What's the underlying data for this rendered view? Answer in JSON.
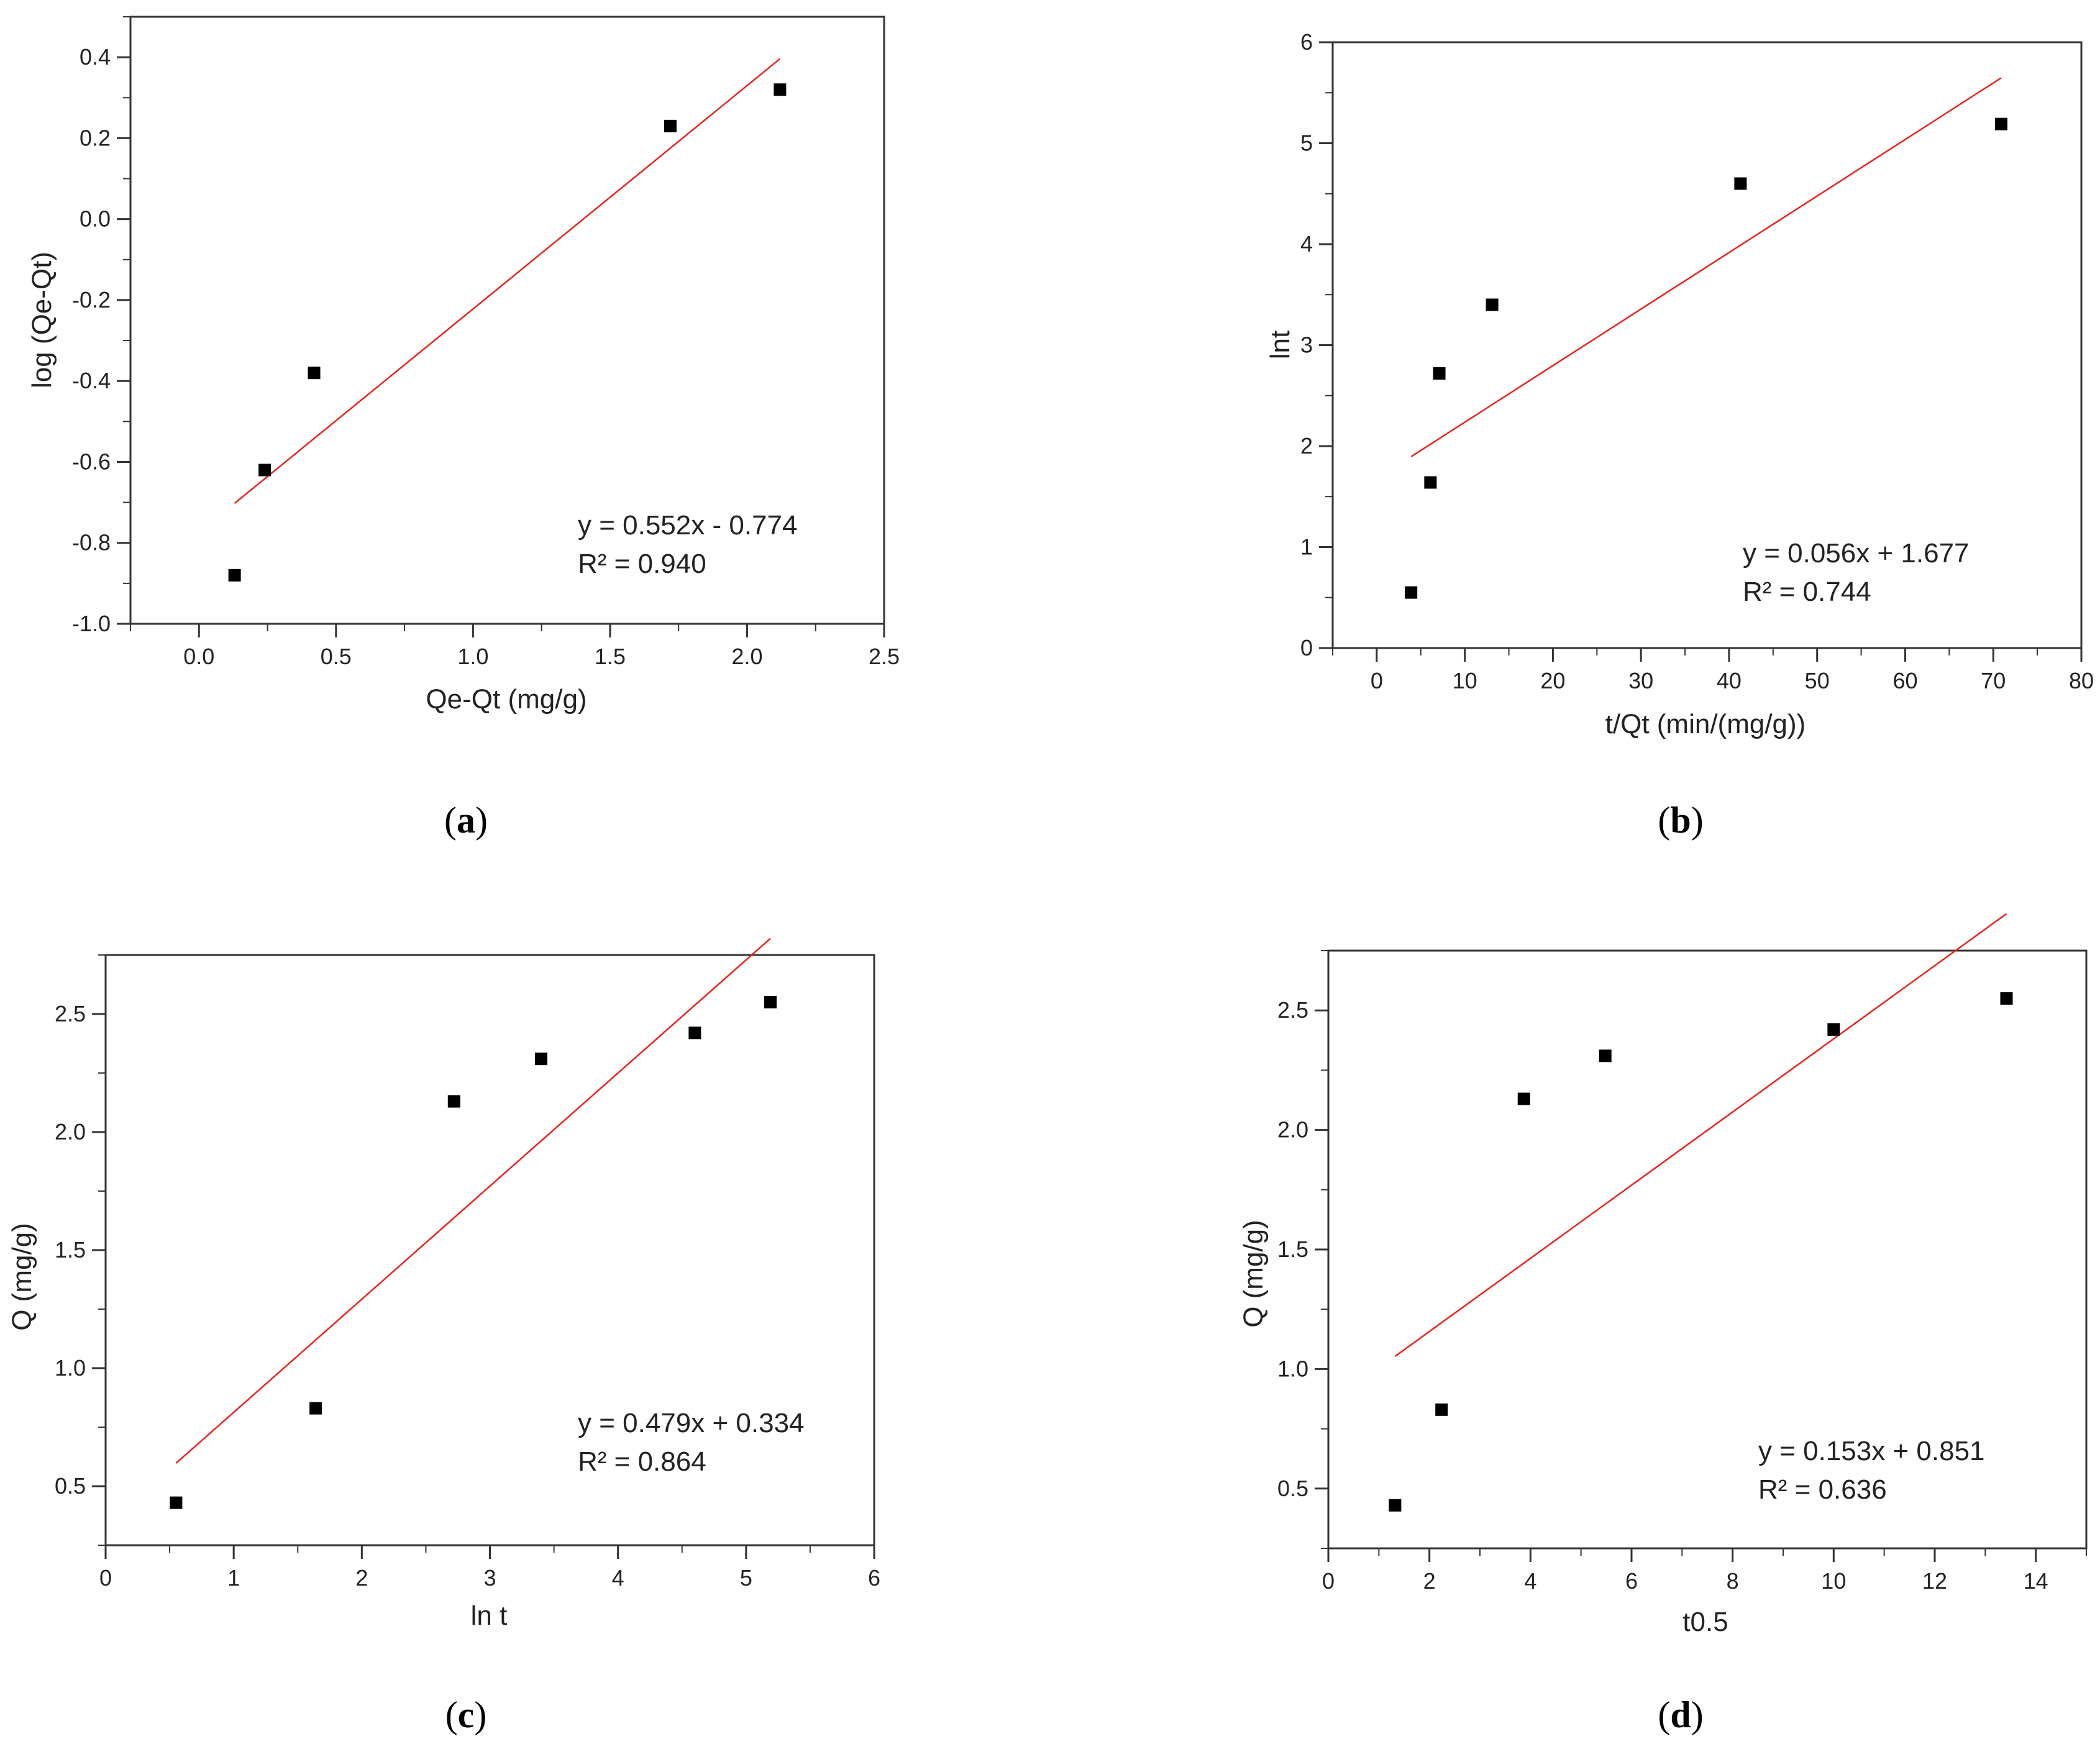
{
  "figure": {
    "line_color": "#e8231d",
    "marker_color": "#000000",
    "frame_color": "#333333"
  },
  "chart_data": [
    {
      "id": "a",
      "type": "scatter",
      "caption_letter": "a",
      "xlabel": "Qe-Qt (mg/g)",
      "ylabel": "log (Qe-Qt)",
      "xlim": [
        -0.25,
        2.5
      ],
      "ylim": [
        -1.0,
        0.5
      ],
      "xticks": [
        0.0,
        0.5,
        1.0,
        1.5,
        2.0,
        2.5
      ],
      "xtick_labels": [
        "0.0",
        "0.5",
        "1.0",
        "1.5",
        "2.0",
        "2.5"
      ],
      "yticks": [
        -1.0,
        -0.8,
        -0.6,
        -0.4,
        -0.2,
        0.0,
        0.2,
        0.4
      ],
      "ytick_labels": [
        "-1.0",
        "-0.8",
        "-0.6",
        "-0.4",
        "-0.2",
        "0.0",
        "0.2",
        "0.4"
      ],
      "points": {
        "x": [
          0.13,
          0.24,
          0.42,
          1.72,
          2.12
        ],
        "y": [
          -0.88,
          -0.62,
          -0.38,
          0.23,
          0.32
        ]
      },
      "fit": {
        "x0": 0.13,
        "x1": 2.12,
        "slope": 0.552,
        "intercept": -0.774
      },
      "equation": "y = 0.552x - 0.774",
      "r2": "R² = 0.940",
      "legend_position": "bottom-right"
    },
    {
      "id": "b",
      "type": "scatter",
      "caption_letter": "b",
      "xlabel": "t/Qt (min/(mg/g))",
      "ylabel": "lnt",
      "xlim": [
        -5,
        80
      ],
      "ylim": [
        0,
        6
      ],
      "xticks": [
        0,
        10,
        20,
        30,
        40,
        50,
        60,
        70,
        80
      ],
      "xtick_labels": [
        "0",
        "10",
        "20",
        "30",
        "40",
        "50",
        "60",
        "70",
        "80"
      ],
      "yticks": [
        0,
        1,
        2,
        3,
        4,
        5,
        6
      ],
      "ytick_labels": [
        "0",
        "1",
        "2",
        "3",
        "4",
        "5",
        "6"
      ],
      "points": {
        "x": [
          3.9,
          6.1,
          7.1,
          13.1,
          41.3,
          70.9
        ],
        "y": [
          0.55,
          1.64,
          2.72,
          3.4,
          4.6,
          5.19
        ]
      },
      "fit": {
        "x0": 3.9,
        "x1": 70.9,
        "slope": 0.056,
        "intercept": 1.677
      },
      "equation": "y = 0.056x + 1.677",
      "r2": "R² = 0.744",
      "legend_position": "bottom-right"
    },
    {
      "id": "c",
      "type": "scatter",
      "caption_letter": "c",
      "xlabel": "ln t",
      "ylabel": "Q (mg/g)",
      "xlim": [
        0,
        6
      ],
      "ylim": [
        0.25,
        2.75
      ],
      "xticks": [
        0,
        1,
        2,
        3,
        4,
        5,
        6
      ],
      "xtick_labels": [
        "0",
        "1",
        "2",
        "3",
        "4",
        "5",
        "6"
      ],
      "yticks": [
        0.5,
        1.0,
        1.5,
        2.0,
        2.5
      ],
      "ytick_labels": [
        "0.5",
        "1.0",
        "1.5",
        "2.0",
        "2.5"
      ],
      "points": {
        "x": [
          0.55,
          1.64,
          2.72,
          3.4,
          4.6,
          5.19
        ],
        "y": [
          0.43,
          0.83,
          2.13,
          2.31,
          2.42,
          2.55
        ]
      },
      "fit": {
        "x0": 0.55,
        "x1": 5.19,
        "slope": 0.479,
        "intercept": 0.334
      },
      "equation": "y = 0.479x + 0.334",
      "r2": "R² = 0.864",
      "legend_position": "bottom-right"
    },
    {
      "id": "d",
      "type": "scatter",
      "caption_letter": "d",
      "xlabel": "t0.5",
      "ylabel": "Q (mg/g)",
      "xlim": [
        0,
        15
      ],
      "ylim": [
        0.25,
        2.75
      ],
      "xticks": [
        0,
        2,
        4,
        6,
        8,
        10,
        12,
        14
      ],
      "xtick_labels": [
        "0",
        "2",
        "4",
        "6",
        "8",
        "10",
        "12",
        "14"
      ],
      "yticks": [
        0.5,
        1.0,
        1.5,
        2.0,
        2.5
      ],
      "ytick_labels": [
        "0.5",
        "1.0",
        "1.5",
        "2.0",
        "2.5"
      ],
      "points": {
        "x": [
          1.32,
          2.24,
          3.87,
          5.48,
          10.0,
          13.42
        ],
        "y": [
          0.43,
          0.83,
          2.13,
          2.31,
          2.42,
          2.55
        ]
      },
      "fit": {
        "x0": 1.32,
        "x1": 13.42,
        "slope": 0.153,
        "intercept": 0.851
      },
      "equation": "y = 0.153x + 0.851",
      "r2": "R² = 0.636",
      "legend_position": "bottom-right"
    }
  ]
}
